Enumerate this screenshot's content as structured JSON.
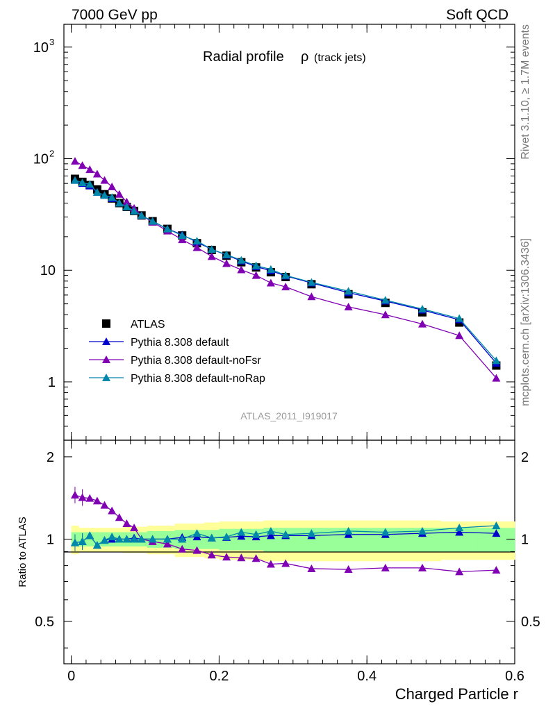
{
  "header": {
    "left": "7000 GeV pp",
    "right": "Soft QCD",
    "side_top": "Rivet 3.1.10, ≥ 1.7M events",
    "side_bottom": "mcplots.cern.ch [arXiv:1306.3436]"
  },
  "chart_data": {
    "type": "scatter",
    "title": "Radial profile",
    "title_symbol": "ρ",
    "title_suffix": "(track jets)",
    "watermark": "ATLAS_2011_I919017",
    "xlabel": "Charged Particle r",
    "ratio_ylabel": "Ratio to ATLAS",
    "xlim": [
      -0.01,
      0.6
    ],
    "ylim": [
      0.3,
      1600
    ],
    "yscale": "log",
    "ratio_ylim": [
      0.35,
      2.3
    ],
    "x_ticks": [
      "0",
      "0.2",
      "0.4",
      "0.6"
    ],
    "y_ticks": [
      "1",
      "10",
      "10^2",
      "10^3"
    ],
    "ratio_ticks": [
      "0.5",
      "1",
      "2"
    ],
    "legend_position": "bottom-left",
    "x": [
      0.005,
      0.015,
      0.025,
      0.035,
      0.045,
      0.055,
      0.065,
      0.075,
      0.085,
      0.095,
      0.11,
      0.13,
      0.15,
      0.17,
      0.19,
      0.21,
      0.23,
      0.25,
      0.27,
      0.29,
      0.325,
      0.375,
      0.425,
      0.475,
      0.525,
      0.575
    ],
    "series": [
      {
        "name": "ATLAS",
        "color": "#000000",
        "marker": "square",
        "values": [
          66,
          62,
          58,
          53,
          48,
          44,
          40,
          37,
          34,
          31,
          27.5,
          23.5,
          20.5,
          17.5,
          15.2,
          13.5,
          11.8,
          10.6,
          9.6,
          8.7,
          7.5,
          6.1,
          5.1,
          4.2,
          3.4,
          1.4
        ]
      },
      {
        "name": "Pythia 8.308 default",
        "color": "#0000cc",
        "marker": "triangle",
        "values": [
          64,
          60,
          57,
          50,
          47,
          44,
          40,
          37,
          34,
          31,
          27.5,
          23.5,
          20.8,
          17.9,
          15.4,
          13.7,
          12.1,
          10.8,
          9.9,
          8.9,
          7.7,
          6.3,
          5.3,
          4.4,
          3.6,
          1.47
        ]
      },
      {
        "name": "Pythia 8.308 default-noFsr",
        "color": "#8000b3",
        "marker": "triangle",
        "values": [
          95,
          87,
          80,
          73,
          64,
          56,
          48,
          41,
          36,
          31,
          27,
          22.5,
          18.8,
          16.0,
          13.3,
          11.5,
          10.1,
          9.0,
          7.7,
          7.1,
          5.8,
          4.7,
          4.0,
          3.3,
          2.6,
          1.08
        ]
      },
      {
        "name": "Pythia 8.308 default-noRap",
        "color": "#0088aa",
        "marker": "triangle",
        "values": [
          64,
          61,
          59,
          50,
          47,
          45,
          40,
          37,
          34,
          31,
          27.5,
          23.5,
          20.5,
          18.3,
          15.4,
          13.8,
          12.3,
          11.0,
          10.2,
          9.0,
          7.8,
          6.5,
          5.4,
          4.5,
          3.7,
          1.55
        ]
      }
    ],
    "ratio_series": [
      {
        "name": "Pythia 8.308 default",
        "color": "#0000cc",
        "values": [
          0.97,
          0.98,
          1.03,
          0.95,
          0.99,
          1.0,
          1.0,
          1.0,
          1.01,
          1.0,
          1.0,
          1.0,
          1.015,
          1.02,
          1.01,
          1.015,
          1.025,
          1.02,
          1.03,
          1.03,
          1.03,
          1.04,
          1.04,
          1.05,
          1.06,
          1.05
        ]
      },
      {
        "name": "Pythia 8.308 default-noFsr",
        "color": "#8000b3",
        "values": [
          1.45,
          1.42,
          1.41,
          1.38,
          1.33,
          1.27,
          1.2,
          1.14,
          1.1,
          1.0,
          0.98,
          0.96,
          0.92,
          0.91,
          0.875,
          0.86,
          0.855,
          0.85,
          0.81,
          0.815,
          0.78,
          0.775,
          0.785,
          0.785,
          0.76,
          0.77
        ]
      },
      {
        "name": "Pythia 8.308 default-noRap",
        "color": "#0088aa",
        "values": [
          0.97,
          0.98,
          1.03,
          0.95,
          0.99,
          1.02,
          1.0,
          1.0,
          1.0,
          1.0,
          1.0,
          1.0,
          1.0,
          1.05,
          1.01,
          1.02,
          1.06,
          1.04,
          1.07,
          1.04,
          1.05,
          1.07,
          1.06,
          1.07,
          1.1,
          1.12
        ]
      }
    ],
    "ratio_bands": {
      "green_half_width": [
        0.06,
        0.06,
        0.06,
        0.06,
        0.06,
        0.06,
        0.06,
        0.06,
        0.06,
        0.06,
        0.07,
        0.07,
        0.08,
        0.08,
        0.08,
        0.09,
        0.09,
        0.09,
        0.1,
        0.1,
        0.1,
        0.1,
        0.1,
        0.1,
        0.1,
        0.1
      ],
      "yellow_half_width": [
        0.12,
        0.1,
        0.1,
        0.1,
        0.1,
        0.1,
        0.1,
        0.11,
        0.11,
        0.11,
        0.12,
        0.12,
        0.14,
        0.14,
        0.15,
        0.16,
        0.16,
        0.16,
        0.17,
        0.17,
        0.17,
        0.17,
        0.17,
        0.17,
        0.16,
        0.16
      ],
      "green_color": "#99ff99",
      "yellow_color": "#ffff99"
    }
  }
}
